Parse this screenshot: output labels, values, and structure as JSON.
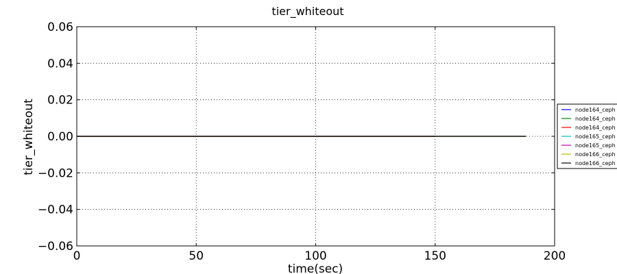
{
  "chart_data": {
    "type": "line",
    "title": "tier_whiteout",
    "xlabel": "time(sec)",
    "ylabel": "tier_whiteout",
    "xlim": [
      0,
      200
    ],
    "ylim": [
      -0.06,
      0.06
    ],
    "x_ticks": [
      0,
      50,
      100,
      150,
      200
    ],
    "y_ticks": [
      -0.06,
      -0.04,
      -0.02,
      0.0,
      0.02,
      0.04,
      0.06
    ],
    "x_tick_labels": [
      "0",
      "50",
      "100",
      "150",
      "200"
    ],
    "y_tick_labels": [
      "−0.06",
      "−0.04",
      "−0.02",
      "0.00",
      "0.02",
      "0.04",
      "0.06"
    ],
    "grid": true,
    "legend_position": "right",
    "series": [
      {
        "name": "node164_ceph",
        "color": "#0000ff",
        "x": [
          0,
          150
        ],
        "y": [
          0,
          0
        ]
      },
      {
        "name": "node164_ceph",
        "color": "#008000",
        "x": [
          0,
          150
        ],
        "y": [
          0,
          0
        ]
      },
      {
        "name": "node164_ceph",
        "color": "#ff0000",
        "x": [
          0,
          150
        ],
        "y": [
          0,
          0
        ]
      },
      {
        "name": "node165_ceph",
        "color": "#00bfbf",
        "x": [
          0,
          188
        ],
        "y": [
          0,
          0
        ]
      },
      {
        "name": "node165_ceph",
        "color": "#bf00bf",
        "x": [
          0,
          188
        ],
        "y": [
          0,
          0
        ]
      },
      {
        "name": "node166_ceph",
        "color": "#bfbf00",
        "x": [
          0,
          188
        ],
        "y": [
          0,
          0
        ]
      },
      {
        "name": "node166_ceph",
        "color": "#000000",
        "x": [
          0,
          188
        ],
        "y": [
          0,
          0
        ]
      }
    ]
  }
}
